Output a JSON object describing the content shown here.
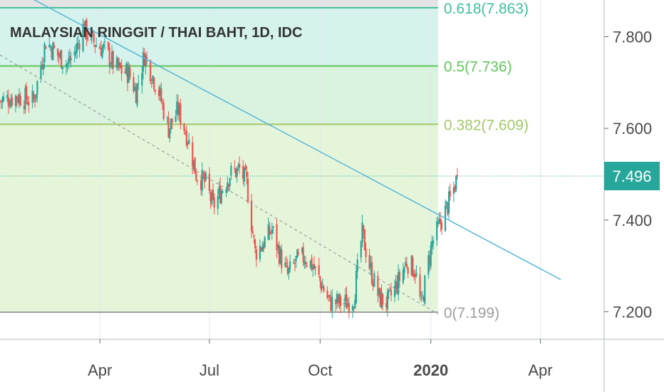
{
  "title": "MALAYSIAN RINGGIT / THAI BAHT, 1D, IDC",
  "colors": {
    "up": "#26a69a",
    "down": "#ef5350",
    "trendline": "#4fb3d9",
    "dashed": "#9e9e9e",
    "price_tag": "#27a69a",
    "zone_top": "#e4e4e4",
    "zone_618": "#d5f2ec",
    "zone_5": "#d9f3de",
    "zone_382": "#e5f5da",
    "zone_0": "#ecf5da"
  },
  "chart_data": {
    "type": "candlestick",
    "title": "MALAYSIAN RINGGIT / THAI BAHT, 1D, IDC",
    "ylim": [
      7.14,
      7.88
    ],
    "y_ticks": [
      "7.200",
      "7.400",
      "7.600",
      "7.800"
    ],
    "y_tick_values": [
      7.2,
      7.4,
      7.6,
      7.8
    ],
    "x_ticks": [
      {
        "label": "Apr",
        "date": "2019-04-01",
        "bold": false
      },
      {
        "label": "Jul",
        "date": "2019-07-01",
        "bold": false
      },
      {
        "label": "Oct",
        "date": "2019-10-01",
        "bold": false
      },
      {
        "label": "2020",
        "date": "2020-01-01",
        "bold": true
      },
      {
        "label": "Apr",
        "date": "2020-04-01",
        "bold": false
      }
    ],
    "x_range": [
      "2019-01-08",
      "2020-05-24"
    ],
    "last_price": "7.496",
    "last_price_value": 7.496,
    "fibonacci": [
      {
        "label": "0.618(7.863)",
        "level": 7.863,
        "color": "#3fbf9c"
      },
      {
        "label": "0.5(7.736)",
        "level": 7.736,
        "color": "#62c75d"
      },
      {
        "label": "0.382(7.609)",
        "level": 7.609,
        "color": "#a3c96a"
      },
      {
        "label": "0(7.199)",
        "level": 7.199,
        "color": "#9e9e9e"
      }
    ],
    "fib_end": "2020-01-07",
    "trendline": {
      "from": [
        "2019-01-08",
        7.92
      ],
      "to": [
        "2020-04-18",
        7.27
      ]
    },
    "dashed_trendline": {
      "from": [
        "2019-01-08",
        7.76
      ],
      "to": [
        "2020-01-07",
        7.195
      ]
    },
    "close_path": [
      [
        "2019-01-08",
        7.66
      ],
      [
        "2019-01-22",
        7.67
      ],
      [
        "2019-02-05",
        7.66
      ],
      [
        "2019-02-15",
        7.79
      ],
      [
        "2019-02-25",
        7.76
      ],
      [
        "2019-03-05",
        7.74
      ],
      [
        "2019-03-12",
        7.77
      ],
      [
        "2019-03-18",
        7.82
      ],
      [
        "2019-03-26",
        7.79
      ],
      [
        "2019-04-05",
        7.77
      ],
      [
        "2019-04-15",
        7.73
      ],
      [
        "2019-04-25",
        7.72
      ],
      [
        "2019-05-01",
        7.68
      ],
      [
        "2019-05-08",
        7.76
      ],
      [
        "2019-05-20",
        7.68
      ],
      [
        "2019-05-28",
        7.6
      ],
      [
        "2019-06-05",
        7.64
      ],
      [
        "2019-06-13",
        7.58
      ],
      [
        "2019-06-20",
        7.5
      ],
      [
        "2019-06-28",
        7.48
      ],
      [
        "2019-07-04",
        7.43
      ],
      [
        "2019-07-12",
        7.47
      ],
      [
        "2019-07-18",
        7.5
      ],
      [
        "2019-07-26",
        7.51
      ],
      [
        "2019-08-01",
        7.48
      ],
      [
        "2019-08-08",
        7.33
      ],
      [
        "2019-08-15",
        7.35
      ],
      [
        "2019-08-22",
        7.38
      ],
      [
        "2019-08-29",
        7.32
      ],
      [
        "2019-09-04",
        7.28
      ],
      [
        "2019-09-11",
        7.31
      ],
      [
        "2019-09-18",
        7.32
      ],
      [
        "2019-09-25",
        7.3
      ],
      [
        "2019-10-02",
        7.26
      ],
      [
        "2019-10-09",
        7.22
      ],
      [
        "2019-10-17",
        7.22
      ],
      [
        "2019-10-24",
        7.22
      ],
      [
        "2019-10-29",
        7.23
      ],
      [
        "2019-11-05",
        7.37
      ],
      [
        "2019-11-12",
        7.29
      ],
      [
        "2019-11-19",
        7.23
      ],
      [
        "2019-11-26",
        7.22
      ],
      [
        "2019-12-04",
        7.26
      ],
      [
        "2019-12-12",
        7.31
      ],
      [
        "2019-12-19",
        7.29
      ],
      [
        "2019-12-24",
        7.21
      ],
      [
        "2019-12-30",
        7.31
      ],
      [
        "2020-01-02",
        7.35
      ],
      [
        "2020-01-07",
        7.38
      ],
      [
        "2020-01-13",
        7.42
      ],
      [
        "2020-01-18",
        7.45
      ],
      [
        "2020-01-23",
        7.496
      ]
    ]
  }
}
